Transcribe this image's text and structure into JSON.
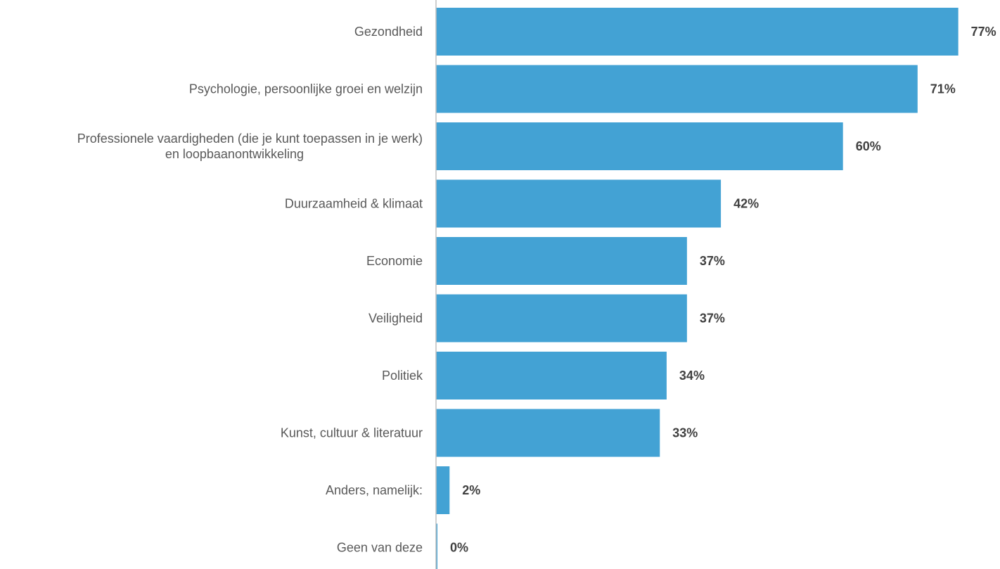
{
  "chart_data": {
    "type": "bar",
    "orientation": "horizontal",
    "categories": [
      "Gezondheid",
      "Psychologie, persoonlijke groei en welzijn",
      "Professionele vaardigheden (die je kunt toepassen in je werk) en loopbaanontwikkeling",
      "Duurzaamheid & klimaat",
      "Economie",
      "Veiligheid",
      "Politiek",
      "Kunst, cultuur & literatuur",
      "Anders, namelijk:",
      "Geen van deze"
    ],
    "category_lines": [
      [
        "Gezondheid"
      ],
      [
        "Psychologie, persoonlijke groei en welzijn"
      ],
      [
        "Professionele vaardigheden (die je kunt toepassen in je werk)",
        "en loopbaanontwikkeling"
      ],
      [
        "Duurzaamheid & klimaat"
      ],
      [
        "Economie"
      ],
      [
        "Veiligheid"
      ],
      [
        "Politiek"
      ],
      [
        "Kunst, cultuur & literatuur"
      ],
      [
        "Anders, namelijk:"
      ],
      [
        "Geen van deze"
      ]
    ],
    "values": [
      77,
      71,
      60,
      42,
      37,
      37,
      34,
      33,
      2,
      0
    ],
    "value_labels": [
      "77%",
      "71%",
      "60%",
      "42%",
      "37%",
      "37%",
      "34%",
      "33%",
      "2%",
      "0%"
    ],
    "unit": "%",
    "xlim": [
      0,
      100
    ],
    "grid": false,
    "legend": "none",
    "bar_color": "#43a2d4",
    "axis_color": "#bfbfbf",
    "label_color": "#595959",
    "value_color": "#404040"
  }
}
